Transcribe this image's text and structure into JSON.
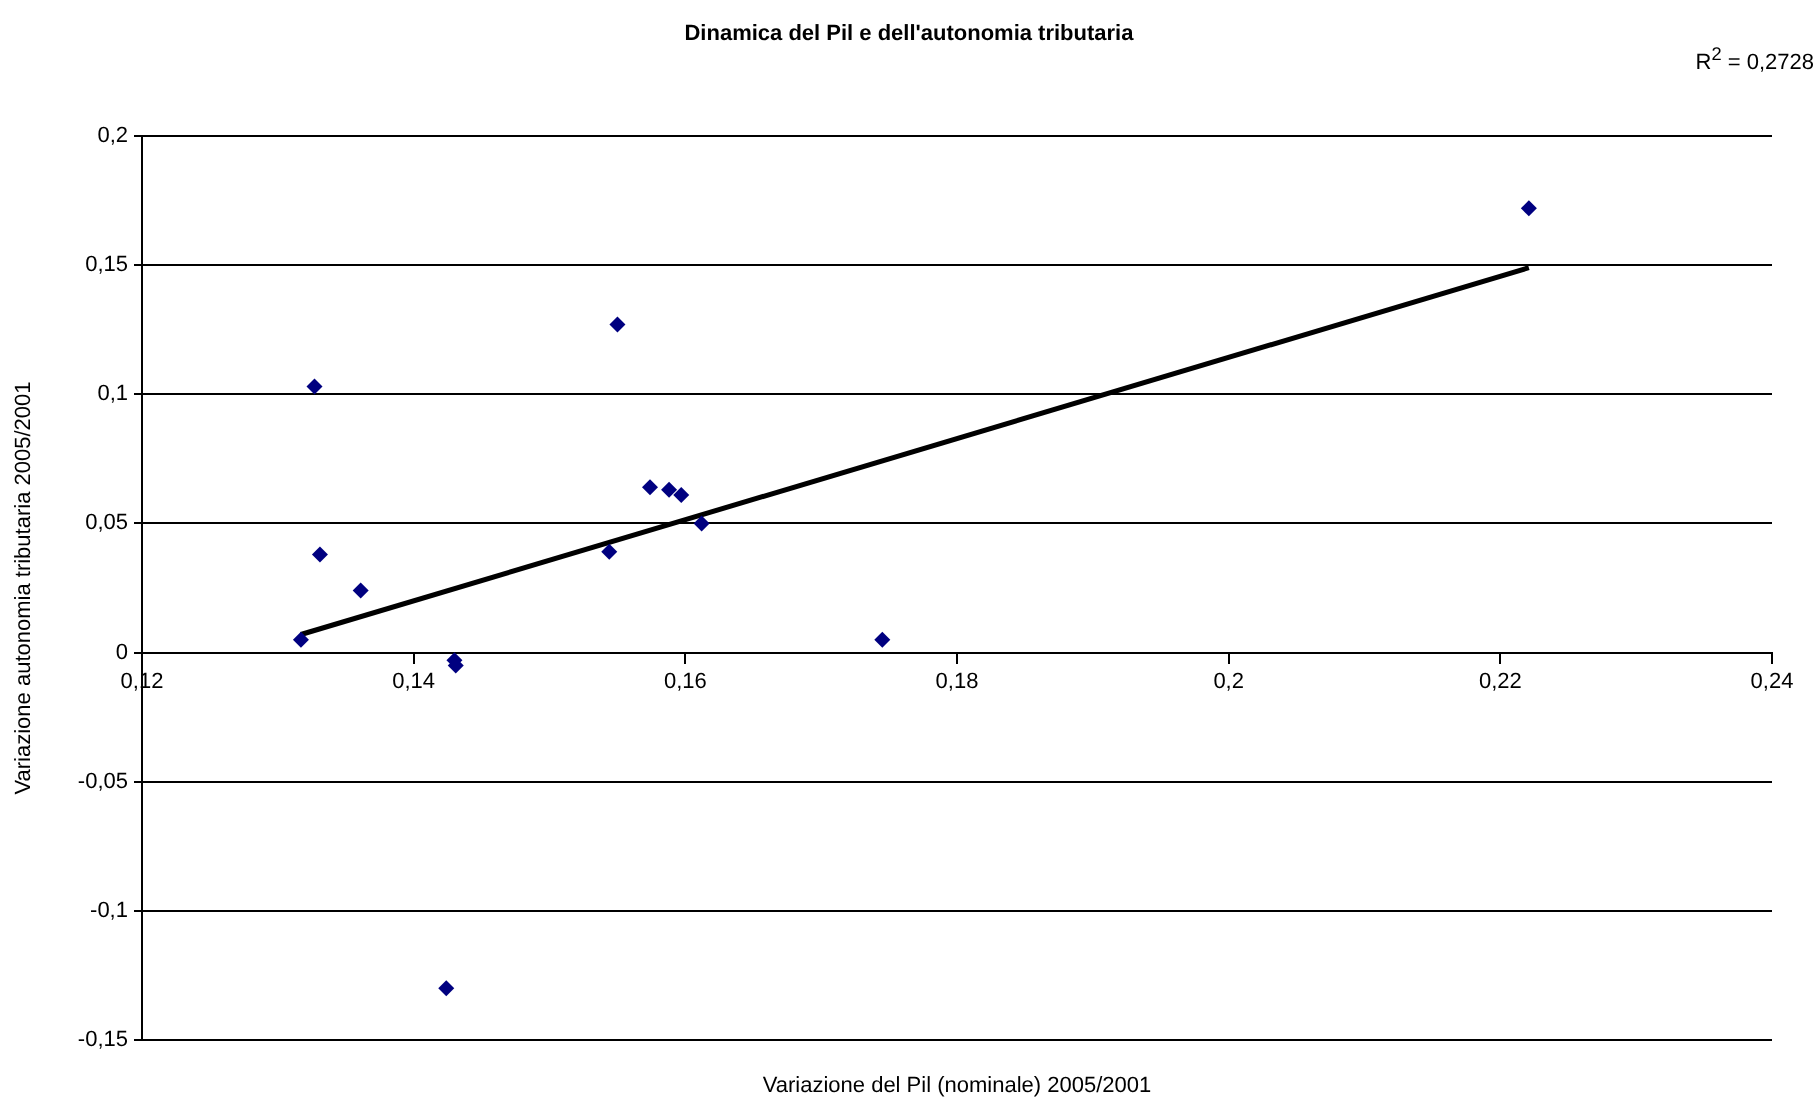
{
  "chart_data": {
    "type": "scatter",
    "title": "Dinamica del Pil e dell'autonomia tributaria",
    "xlabel": "Variazione del Pil (nominale) 2005/2001",
    "ylabel": "Variazione autonomia tributaria 2005/2001",
    "annotations": [
      "R$^{2}$ = 0,2728"
    ],
    "series": [
      {
        "color": "#000080",
        "marker": "diamond",
        "x": [
          0.1317,
          0.1327,
          0.1331,
          0.1361,
          0.143,
          0.1431,
          0.155,
          0.1544,
          0.1574,
          0.1588,
          0.1597,
          0.1612,
          0.1745,
          0.1424,
          0.2221
        ],
        "values": [
          0.005,
          0.103,
          0.038,
          0.024,
          -0.003,
          -0.005,
          0.127,
          0.039,
          0.064,
          0.063,
          0.061,
          0.05,
          0.005,
          -0.13,
          0.172
        ]
      },
      {
        "type": "line",
        "color": "#000000",
        "marker": "none",
        "x": [
          0.1317,
          0.2221
        ],
        "values": [
          0.007,
          0.149
        ]
      }
    ],
    "xlim": [
      0.12,
      0.24
    ],
    "xticks": [
      {
        "value": 0.12,
        "label": "0,12"
      },
      {
        "value": 0.14,
        "label": "0,14"
      },
      {
        "value": 0.16,
        "label": "0,16"
      },
      {
        "value": 0.18,
        "label": "0,18"
      },
      {
        "value": 0.2,
        "label": "0,2"
      },
      {
        "value": 0.22,
        "label": "0,22"
      },
      {
        "value": 0.24,
        "label": "0,24"
      }
    ],
    "ylim": [
      -0.15,
      0.2
    ],
    "yticks": [
      {
        "value": -0.15,
        "label": "-0,15"
      },
      {
        "value": -0.1,
        "label": "-0,1"
      },
      {
        "value": -0.05,
        "label": "-0,05"
      },
      {
        "value": 0,
        "label": "0"
      },
      {
        "value": 0.05,
        "label": "0,05"
      },
      {
        "value": 0.1,
        "label": "0,1"
      },
      {
        "value": 0.15,
        "label": "0,15"
      },
      {
        "value": 0.2,
        "label": "0,2"
      }
    ],
    "grid": "y"
  }
}
